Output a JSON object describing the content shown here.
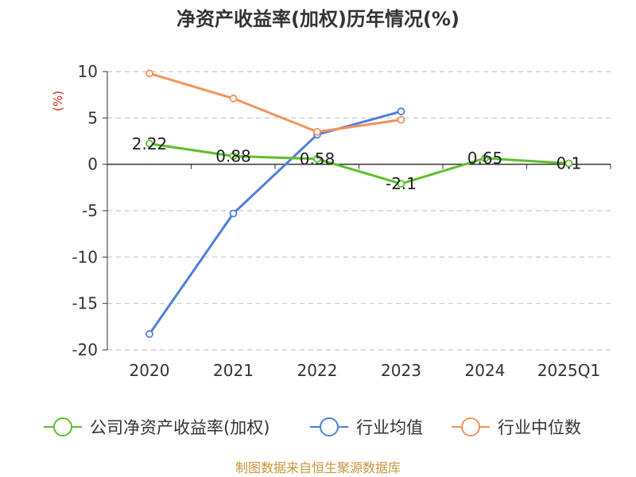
{
  "chart_data": {
    "type": "line",
    "title": "净资产收益率(加权)历年情况(%)",
    "unit_label": "(%)",
    "categories": [
      "2020",
      "2021",
      "2022",
      "2023",
      "2024",
      "2025Q1"
    ],
    "ylim": [
      -20,
      10
    ],
    "yticks": [
      10,
      5,
      0,
      -5,
      -10,
      -15,
      -20
    ],
    "grid": true,
    "legend_position": "bottom",
    "series": [
      {
        "name": "公司净资产收益率(加权)",
        "color": "#5cc02a",
        "values": [
          2.22,
          0.88,
          0.58,
          -2.1,
          0.65,
          0.1
        ],
        "labels": [
          "2.22",
          "0.88",
          "0.58",
          "-2.1",
          "0.65",
          "0.1"
        ]
      },
      {
        "name": "行业均值",
        "color": "#4f7fdc",
        "values": [
          -18.3,
          -5.3,
          3.2,
          5.7,
          null,
          null
        ]
      },
      {
        "name": "行业中位数",
        "color": "#f5915a",
        "values": [
          9.8,
          7.1,
          3.5,
          4.8,
          null,
          null
        ]
      }
    ]
  },
  "source": "制图数据来自恒生聚源数据库"
}
